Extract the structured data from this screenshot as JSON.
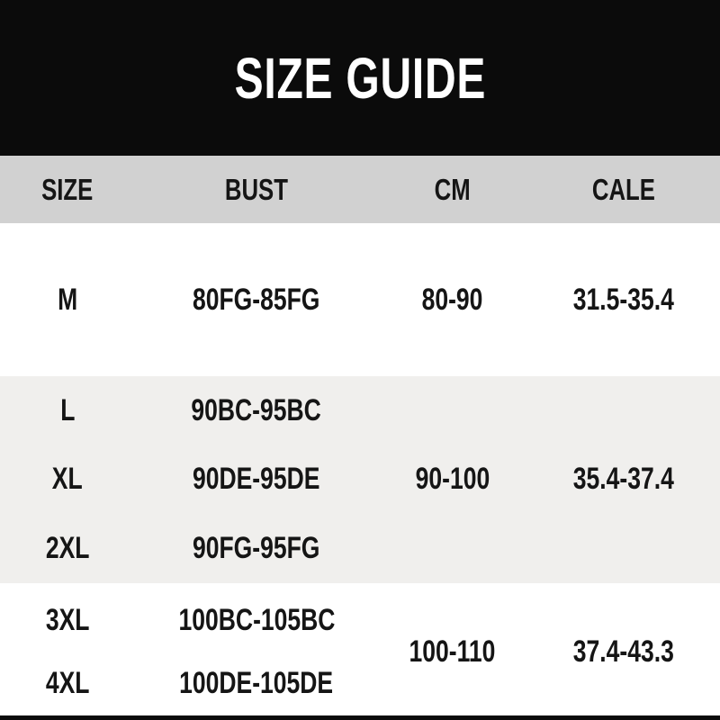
{
  "banner": {
    "title": "SIZE GUIDE"
  },
  "colors": {
    "banner_bg": "#0b0b0b",
    "header_bg": "#d1d1d1",
    "stripe_bg": "#f0efed",
    "white_bg": "#ffffff",
    "text": "#151515",
    "title_text": "#ffffff"
  },
  "table": {
    "headers": [
      "SIZE",
      "BUST",
      "CM",
      "CALE"
    ],
    "groups": [
      {
        "rows": [
          {
            "size": "M",
            "bust": "80FG-85FG"
          }
        ],
        "cm": "80-90",
        "cale": "31.5-35.4"
      },
      {
        "rows": [
          {
            "size": "L",
            "bust": "90BC-95BC"
          },
          {
            "size": "XL",
            "bust": "90DE-95DE"
          },
          {
            "size": "2XL",
            "bust": "90FG-95FG"
          }
        ],
        "cm": "90-100",
        "cale": "35.4-37.4"
      },
      {
        "rows": [
          {
            "size": "3XL",
            "bust": "100BC-105BC"
          },
          {
            "size": "4XL",
            "bust": "100DE-105DE"
          }
        ],
        "cm": "100-110",
        "cale": "37.4-43.3"
      }
    ]
  },
  "chart_data": {
    "type": "table",
    "title": "SIZE GUIDE",
    "columns": [
      "SIZE",
      "BUST",
      "CM",
      "CALE"
    ],
    "rows": [
      [
        "M",
        "80FG-85FG",
        "80-90",
        "31.5-35.4"
      ],
      [
        "L",
        "90BC-95BC",
        "90-100",
        "35.4-37.4"
      ],
      [
        "XL",
        "90DE-95DE",
        "90-100",
        "35.4-37.4"
      ],
      [
        "2XL",
        "90FG-95FG",
        "90-100",
        "35.4-37.4"
      ],
      [
        "3XL",
        "100BC-105BC",
        "100-110",
        "37.4-43.3"
      ],
      [
        "4XL",
        "100DE-105DE",
        "100-110",
        "37.4-43.3"
      ]
    ],
    "notes": "CM and CALE cells are merged across size groups: L-2XL share 90-100 / 35.4-37.4; 3XL-4XL share 100-110 / 37.4-43.3"
  }
}
